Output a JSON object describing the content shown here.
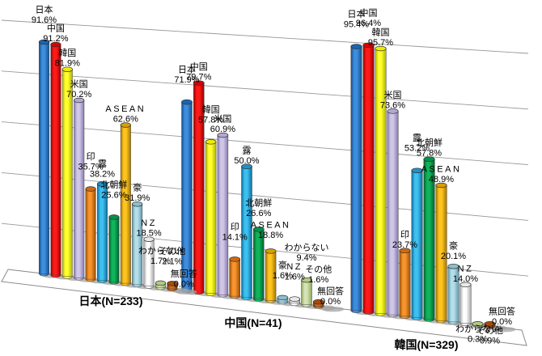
{
  "chart_data": {
    "type": "bar",
    "subtype": "3d-cylinder",
    "title": "",
    "xlabel": "",
    "ylabel": "",
    "ylim": [
      0,
      100
    ],
    "gridline_step": 20,
    "grid": true,
    "legend_position": "none",
    "value_suffix": "%",
    "series": [
      {
        "label": "日本",
        "dark": "#124F93",
        "light": "#3E8EDC",
        "top": "#1B64B4"
      },
      {
        "label": "中国",
        "dark": "#990000",
        "light": "#FF1A1A",
        "top": "#DD0000"
      },
      {
        "label": "韓国",
        "dark": "#B0B000",
        "light": "#FFFF2E",
        "top": "#EDED00"
      },
      {
        "label": "米国",
        "dark": "#8478AE",
        "light": "#D0C7E6",
        "top": "#B3A8D3"
      },
      {
        "label": "印",
        "dark": "#9C4D00",
        "light": "#F5952F",
        "top": "#D2690E"
      },
      {
        "label": "露",
        "dark": "#0C6D9C",
        "light": "#3EC1F0",
        "top": "#1F93C8"
      },
      {
        "label": "北朝鮮",
        "dark": "#006030",
        "light": "#10B45A",
        "top": "#009447"
      },
      {
        "label": "ASEAN",
        "dark": "#A37300",
        "light": "#FFC51F",
        "top": "#D99E00"
      },
      {
        "label": "豪",
        "dark": "#5E96AB",
        "light": "#B5DEE9",
        "top": "#8BBFCE"
      },
      {
        "label": "NZ",
        "dark": "#A9A9A9",
        "light": "#FEFEFE",
        "top": "#E9E9E9"
      },
      {
        "label": "わからない",
        "dark": "#8CA55C",
        "light": "#D5E3B5",
        "top": "#B5C983"
      },
      {
        "label": "その他",
        "dark": "#7A3A07",
        "light": "#D06C1D",
        "top": "#A54C0C"
      },
      {
        "label": "無回答",
        "dark": "#8F8F8F",
        "light": "#C9C9C9",
        "top": "#ADADAD"
      }
    ],
    "groups": [
      {
        "label": "日本(N=233)",
        "values": [
          91.6,
          91.2,
          81.9,
          70.2,
          35.7,
          38.2,
          25.6,
          62.6,
          31.9,
          18.5,
          1.7,
          2.1,
          0.0
        ]
      },
      {
        "label": "中国(N=41)",
        "values": [
          71.9,
          79.7,
          57.8,
          60.9,
          14.1,
          50.0,
          26.6,
          18.8,
          1.6,
          1.6,
          9.4,
          1.6,
          0.0
        ]
      },
      {
        "label": "韓国(N=329)",
        "values": [
          95.4,
          96.4,
          95.7,
          73.6,
          23.7,
          53.2,
          57.8,
          48.9,
          20.1,
          14.0,
          0.3,
          0.9,
          0.0
        ]
      }
    ],
    "colors": {
      "gridline": "#999999",
      "floor_fill": "#FFFFFF",
      "floor_edge": "#8A8A8A",
      "shadow": "#A3A3A3",
      "label_text": "#000000"
    }
  }
}
